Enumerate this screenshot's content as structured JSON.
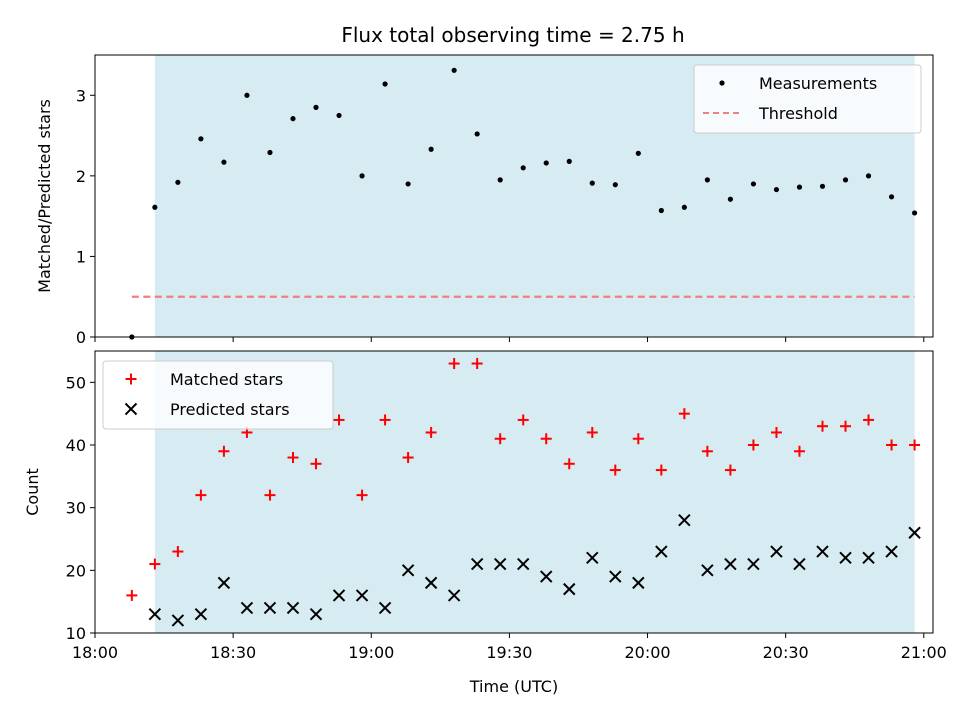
{
  "title": "Flux total observing time = 2.75 h",
  "colors": {
    "shade": "#add8e6",
    "matched": "#ff0000",
    "predicted": "#000000",
    "measurement": "#000000",
    "threshold": "#f08080"
  },
  "chart_data": [
    {
      "type": "scatter",
      "ylabel": "Matched/Predicted stars",
      "xlabel": "",
      "xlim": [
        "18:00",
        "21:02"
      ],
      "ylim": [
        0,
        3.5
      ],
      "yticks": [
        "0",
        "1",
        "2",
        "3"
      ],
      "shaded_span": [
        "18:13",
        "20:58"
      ],
      "legend_position": "upper right",
      "series": [
        {
          "name": "Measurements",
          "marker": "dot",
          "x": [
            "18:08",
            "18:13",
            "18:18",
            "18:23",
            "18:28",
            "18:33",
            "18:38",
            "18:43",
            "18:48",
            "18:53",
            "18:58",
            "19:03",
            "19:08",
            "19:13",
            "19:18",
            "19:23",
            "19:28",
            "19:33",
            "19:38",
            "19:43",
            "19:48",
            "19:53",
            "19:58",
            "20:03",
            "20:08",
            "20:13",
            "20:18",
            "20:23",
            "20:28",
            "20:33",
            "20:38",
            "20:43",
            "20:48",
            "20:53",
            "20:58"
          ],
          "y": [
            0.0,
            1.61,
            1.92,
            2.46,
            2.17,
            3.0,
            2.29,
            2.71,
            2.85,
            2.75,
            2.0,
            3.14,
            1.9,
            2.33,
            3.31,
            2.52,
            1.95,
            2.1,
            2.16,
            2.18,
            1.91,
            1.89,
            2.28,
            1.57,
            1.61,
            1.95,
            1.71,
            1.9,
            1.83,
            1.86,
            1.87,
            1.95,
            2.0,
            1.74,
            1.54
          ]
        },
        {
          "name": "Threshold",
          "style": "dashed",
          "x": [
            "18:08",
            "20:58"
          ],
          "y": [
            0.5,
            0.5
          ]
        }
      ]
    },
    {
      "type": "scatter",
      "ylabel": "Count",
      "xlabel": "Time (UTC)",
      "xlim": [
        "18:00",
        "21:02"
      ],
      "ylim": [
        10,
        55
      ],
      "xticks": [
        "18:00",
        "18:30",
        "19:00",
        "19:30",
        "20:00",
        "20:30",
        "21:00"
      ],
      "yticks": [
        "10",
        "20",
        "30",
        "40",
        "50"
      ],
      "shaded_span": [
        "18:13",
        "20:58"
      ],
      "legend_position": "upper left",
      "categories": [
        "18:08",
        "18:13",
        "18:18",
        "18:23",
        "18:28",
        "18:33",
        "18:38",
        "18:43",
        "18:48",
        "18:53",
        "18:58",
        "19:03",
        "19:08",
        "19:13",
        "19:18",
        "19:23",
        "19:28",
        "19:33",
        "19:38",
        "19:43",
        "19:48",
        "19:53",
        "19:58",
        "20:03",
        "20:08",
        "20:13",
        "20:18",
        "20:23",
        "20:28",
        "20:33",
        "20:38",
        "20:43",
        "20:48",
        "20:53",
        "20:58"
      ],
      "series": [
        {
          "name": "Matched stars",
          "marker": "plus",
          "values": [
            16,
            21,
            23,
            32,
            39,
            42,
            32,
            38,
            37,
            44,
            32,
            44,
            38,
            42,
            53,
            53,
            41,
            44,
            41,
            37,
            42,
            36,
            41,
            36,
            45,
            39,
            36,
            40,
            42,
            39,
            43,
            43,
            44,
            40,
            40
          ]
        },
        {
          "name": "Predicted stars",
          "marker": "x",
          "values": [
            null,
            13,
            12,
            13,
            18,
            14,
            14,
            14,
            13,
            16,
            16,
            14,
            20,
            18,
            16,
            21,
            21,
            21,
            19,
            17,
            22,
            19,
            18,
            23,
            28,
            20,
            21,
            21,
            23,
            21,
            23,
            22,
            22,
            23,
            26
          ]
        }
      ]
    }
  ]
}
